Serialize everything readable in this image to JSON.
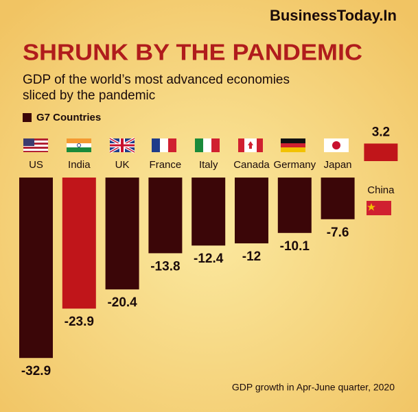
{
  "brand": "BusinessToday.In",
  "chart_data": {
    "type": "bar",
    "title": "SHRUNK BY THE PANDEMIC",
    "subtitle": [
      "GDP of the world’s most advanced economies",
      "sliced by the pandemic"
    ],
    "legend": {
      "label": "G7 Countries",
      "color": "#3b0608"
    },
    "categories": [
      "US",
      "India",
      "UK",
      "France",
      "Italy",
      "Canada",
      "Germany",
      "Japan",
      "China"
    ],
    "values": [
      -32.9,
      -23.9,
      -20.4,
      -13.8,
      -12.4,
      -12,
      -10.1,
      -7.6,
      3.2
    ],
    "colors": [
      "#3b0608",
      "#c0151a",
      "#3b0608",
      "#3b0608",
      "#3b0608",
      "#3b0608",
      "#3b0608",
      "#3b0608",
      "#c0151a"
    ],
    "note": "GDP growth in Apr-June quarter, 2020"
  }
}
